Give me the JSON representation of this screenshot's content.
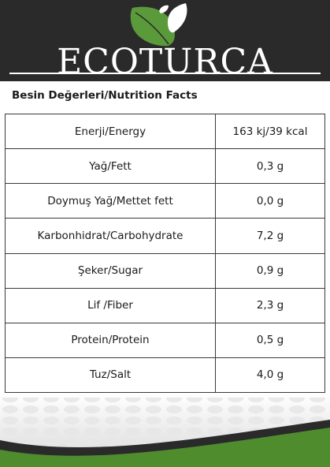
{
  "brand": {
    "name": "ECOTURCA"
  },
  "table_title": "Besin Değerleri/Nutrition Facts",
  "rows": [
    {
      "label": "Enerji/Energy",
      "value": "163 kj/39 kcal"
    },
    {
      "label": "Yağ/Fett",
      "value": "0,3 g"
    },
    {
      "label": "Doymuş Yağ/Mettet fett",
      "value": "0,0 g"
    },
    {
      "label": "Karbonhidrat/Carbohydrate",
      "value": "7,2 g"
    },
    {
      "label": "Şeker/Sugar",
      "value": "0,9 g"
    },
    {
      "label": "Lif /Fiber",
      "value": "2,3 g"
    },
    {
      "label": "Protein/Protein",
      "value": "0,5 g"
    },
    {
      "label": "Tuz/Salt",
      "value": "4,0 g"
    }
  ],
  "colors": {
    "header": "#2a2a2a",
    "leaf_green": "#5a9a3a",
    "leaf_white": "#ffffff",
    "footer_green": "#4e8c2e"
  },
  "icons": [
    "leaf-logo-icon"
  ]
}
